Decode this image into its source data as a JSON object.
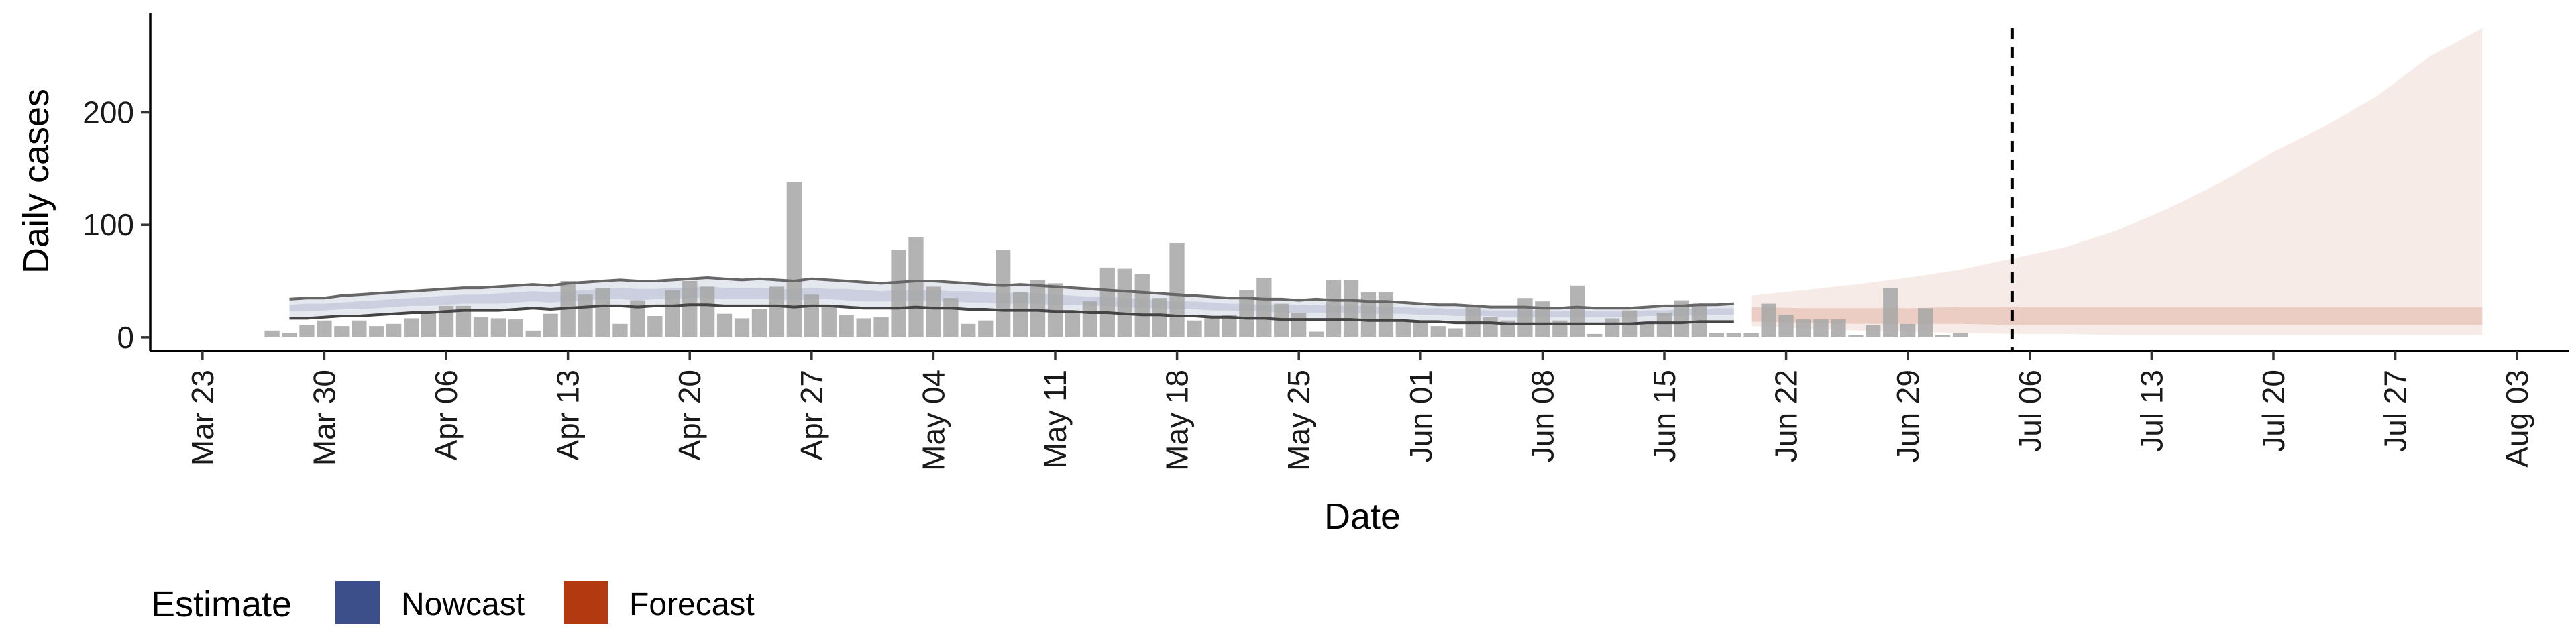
{
  "chart_data": {
    "type": "bar",
    "xlabel": "Date",
    "ylabel": "Daily cases",
    "x_axis": {
      "type": "date",
      "limits": [
        "2020-03-20",
        "2020-08-06"
      ],
      "ticks": [
        {
          "date": "2020-03-23",
          "label": "Mar 23"
        },
        {
          "date": "2020-03-30",
          "label": "Mar 30"
        },
        {
          "date": "2020-04-06",
          "label": "Apr 06"
        },
        {
          "date": "2020-04-13",
          "label": "Apr 13"
        },
        {
          "date": "2020-04-20",
          "label": "Apr 20"
        },
        {
          "date": "2020-04-27",
          "label": "Apr 27"
        },
        {
          "date": "2020-05-04",
          "label": "May 04"
        },
        {
          "date": "2020-05-11",
          "label": "May 11"
        },
        {
          "date": "2020-05-18",
          "label": "May 18"
        },
        {
          "date": "2020-05-25",
          "label": "May 25"
        },
        {
          "date": "2020-06-01",
          "label": "Jun 01"
        },
        {
          "date": "2020-06-08",
          "label": "Jun 08"
        },
        {
          "date": "2020-06-15",
          "label": "Jun 15"
        },
        {
          "date": "2020-06-22",
          "label": "Jun 22"
        },
        {
          "date": "2020-06-29",
          "label": "Jun 29"
        },
        {
          "date": "2020-07-06",
          "label": "Jul 06"
        },
        {
          "date": "2020-07-13",
          "label": "Jul 13"
        },
        {
          "date": "2020-07-20",
          "label": "Jul 20"
        },
        {
          "date": "2020-07-27",
          "label": "Jul 27"
        },
        {
          "date": "2020-08-03",
          "label": "Aug 03"
        }
      ]
    },
    "y_axis": {
      "range": [
        -12,
        288
      ],
      "ticks": [
        0,
        100,
        200
      ]
    },
    "grid": false,
    "bars": {
      "name": "Daily cases",
      "color": "#a6a6a6",
      "start_date": "2020-03-27",
      "values": [
        6,
        4,
        11,
        15,
        10,
        15,
        10,
        12,
        17,
        22,
        28,
        28,
        18,
        17,
        16,
        6,
        21,
        50,
        38,
        44,
        12,
        33,
        19,
        42,
        50,
        45,
        21,
        17,
        25,
        45,
        138,
        38,
        28,
        20,
        17,
        18,
        78,
        89,
        45,
        35,
        12,
        15,
        78,
        40,
        51,
        48,
        22,
        32,
        62,
        61,
        56,
        35,
        84,
        15,
        17,
        20,
        42,
        53,
        30,
        22,
        5,
        51,
        51,
        40,
        40,
        15,
        14,
        10,
        8,
        28,
        18,
        15,
        35,
        32,
        15,
        46,
        3,
        17,
        24,
        12,
        22,
        33,
        30,
        4,
        4,
        4,
        30,
        20,
        16,
        16,
        16,
        2,
        11,
        44,
        12,
        26,
        2,
        4
      ]
    },
    "dashed_vline": "2020-07-05",
    "nowcast": {
      "name": "Nowcast",
      "color": "#3c4f8a",
      "start_date": "2020-03-28",
      "upper90": [
        34,
        35,
        35,
        37,
        38,
        39,
        40,
        41,
        42,
        43,
        44,
        44,
        45,
        46,
        47,
        46,
        48,
        49,
        50,
        51,
        50,
        50,
        51,
        52,
        53,
        52,
        51,
        52,
        51,
        50,
        52,
        51,
        50,
        49,
        48,
        49,
        50,
        50,
        49,
        48,
        47,
        46,
        47,
        46,
        45,
        44,
        43,
        42,
        41,
        40,
        39,
        38,
        37,
        36,
        35,
        35,
        34,
        34,
        33,
        34,
        33,
        33,
        32,
        32,
        31,
        30,
        29,
        29,
        28,
        27,
        27,
        27,
        26,
        26,
        27,
        26,
        26,
        26,
        27,
        28,
        28,
        29,
        29,
        30
      ],
      "upper50": [
        29,
        30,
        30,
        31,
        32,
        33,
        34,
        35,
        36,
        37,
        38,
        38,
        39,
        40,
        41,
        40,
        41,
        42,
        43,
        44,
        43,
        43,
        44,
        44,
        45,
        44,
        44,
        44,
        43,
        43,
        44,
        43,
        43,
        42,
        41,
        42,
        42,
        42,
        41,
        41,
        40,
        39,
        40,
        39,
        38,
        37,
        36,
        36,
        35,
        34,
        33,
        32,
        32,
        31,
        30,
        30,
        29,
        29,
        29,
        29,
        28,
        28,
        28,
        27,
        27,
        26,
        26,
        25,
        25,
        24,
        24,
        24,
        23,
        23,
        24,
        23,
        23,
        23,
        24,
        24,
        25,
        25,
        26,
        26
      ],
      "median": [
        26,
        26,
        27,
        28,
        28,
        29,
        30,
        31,
        32,
        33,
        34,
        34,
        34,
        35,
        36,
        35,
        36,
        37,
        38,
        39,
        38,
        38,
        39,
        39,
        40,
        39,
        39,
        39,
        38,
        38,
        39,
        38,
        38,
        37,
        36,
        37,
        37,
        37,
        36,
        36,
        35,
        35,
        35,
        34,
        34,
        33,
        32,
        32,
        31,
        30,
        29,
        29,
        28,
        27,
        27,
        26,
        26,
        26,
        25,
        26,
        25,
        25,
        25,
        24,
        24,
        23,
        23,
        22,
        22,
        22,
        21,
        21,
        21,
        21,
        21,
        21,
        21,
        21,
        22,
        22,
        22,
        23,
        23,
        23
      ],
      "lower50": [
        23,
        23,
        24,
        25,
        25,
        26,
        27,
        28,
        28,
        29,
        30,
        30,
        30,
        31,
        32,
        31,
        32,
        33,
        34,
        34,
        33,
        34,
        34,
        35,
        35,
        34,
        34,
        34,
        34,
        33,
        34,
        34,
        33,
        32,
        32,
        32,
        33,
        32,
        32,
        31,
        31,
        30,
        30,
        30,
        29,
        29,
        28,
        28,
        27,
        26,
        26,
        25,
        25,
        24,
        24,
        23,
        23,
        22,
        22,
        22,
        22,
        22,
        21,
        21,
        21,
        20,
        20,
        19,
        19,
        19,
        18,
        18,
        18,
        18,
        18,
        18,
        18,
        18,
        19,
        19,
        19,
        20,
        20,
        20
      ],
      "lower90": [
        17,
        17,
        18,
        19,
        19,
        20,
        21,
        22,
        22,
        23,
        24,
        24,
        24,
        25,
        26,
        25,
        26,
        27,
        28,
        28,
        27,
        28,
        28,
        29,
        29,
        28,
        28,
        28,
        28,
        27,
        28,
        28,
        27,
        26,
        26,
        26,
        27,
        26,
        26,
        25,
        25,
        24,
        24,
        24,
        23,
        23,
        22,
        22,
        21,
        20,
        20,
        19,
        19,
        18,
        18,
        17,
        17,
        16,
        16,
        16,
        16,
        16,
        15,
        15,
        15,
        14,
        14,
        13,
        13,
        13,
        12,
        12,
        12,
        12,
        12,
        12,
        12,
        12,
        13,
        13,
        13,
        14,
        14,
        14
      ]
    },
    "forecast": {
      "name": "Forecast",
      "color": "#b33a10",
      "dates": [
        "2020-06-20",
        "2020-06-23",
        "2020-06-26",
        "2020-06-29",
        "2020-07-02",
        "2020-07-05",
        "2020-07-08",
        "2020-07-11",
        "2020-07-14",
        "2020-07-17",
        "2020-07-20",
        "2020-07-23",
        "2020-07-26",
        "2020-07-29",
        "2020-08-01"
      ],
      "upper90": [
        37,
        42,
        47,
        53,
        60,
        70,
        80,
        95,
        115,
        138,
        165,
        188,
        215,
        250,
        275
      ],
      "lower90": [
        10,
        8,
        6,
        5,
        4,
        3,
        3,
        2,
        2,
        2,
        2,
        2,
        2,
        2,
        2
      ],
      "upper50": [
        27,
        26,
        26,
        26,
        27,
        27,
        27,
        27,
        27,
        27,
        27,
        27,
        27,
        27,
        27
      ],
      "lower50": [
        14,
        13,
        12,
        12,
        12,
        11,
        11,
        11,
        11,
        11,
        11,
        11,
        11,
        11,
        11
      ]
    },
    "legend": {
      "title": "Estimate",
      "position": "bottom-left",
      "items": [
        {
          "label": "Nowcast",
          "color": "#3c4f8a"
        },
        {
          "label": "Forecast",
          "color": "#b33a10"
        }
      ]
    }
  }
}
